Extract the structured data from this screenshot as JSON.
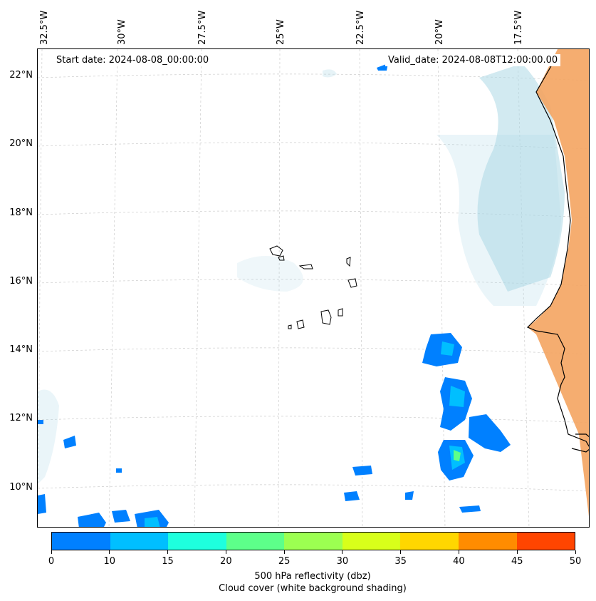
{
  "map": {
    "lon_labels": [
      "32.5°W",
      "30°W",
      "27.5°W",
      "25°W",
      "22.5°W",
      "20°W",
      "17.5°W"
    ],
    "lat_labels": [
      "22°N",
      "20°N",
      "18°N",
      "16°N",
      "14°N",
      "12°N",
      "10°N"
    ],
    "start_date": "Start date: 2024-08-08_00:00:00",
    "valid_date": "Valid_date: 2024-08-08T12:00:00.00",
    "land_color": "#f4a460",
    "cloud_color": "#add8e6",
    "gridlines": true
  },
  "colorbar": {
    "colors": [
      "#0080ff",
      "#00bfff",
      "#1effde",
      "#5dff8a",
      "#9cff51",
      "#d8ff1a",
      "#ffd700",
      "#ff8c00",
      "#ff4500"
    ],
    "tick_labels": [
      "0",
      "10",
      "15",
      "20",
      "25",
      "30",
      "35",
      "40",
      "45",
      "50"
    ],
    "label": "500 hPa reflectivity (dbz)",
    "sublabel": "Cloud cover (white background shading)"
  }
}
